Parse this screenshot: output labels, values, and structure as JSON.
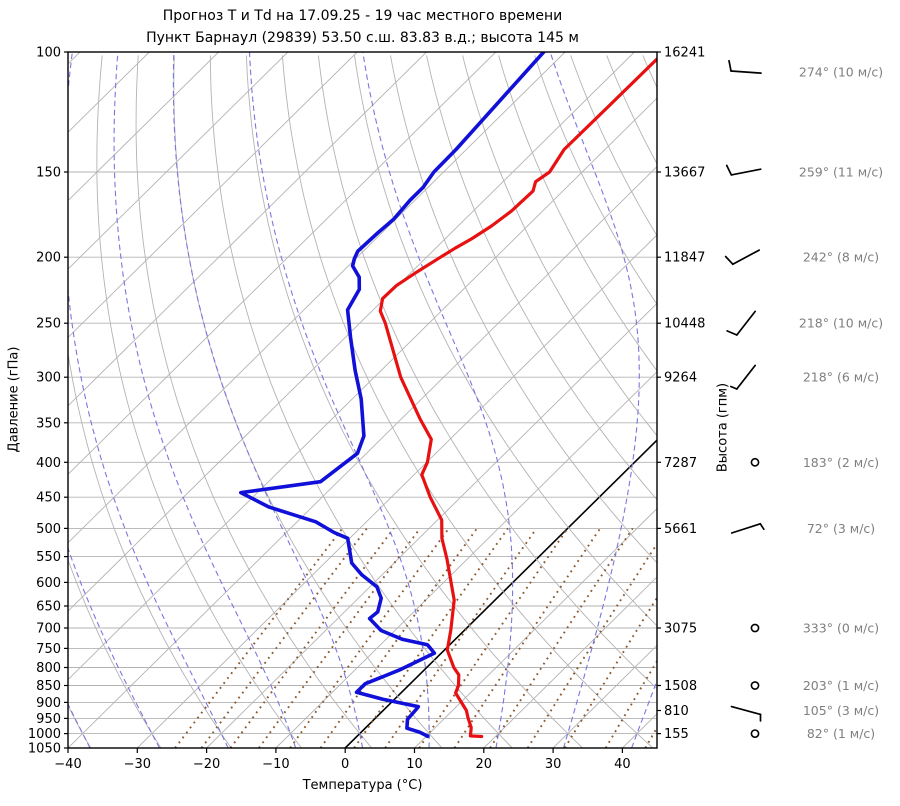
{
  "title": {
    "line1": "Прогноз Т и Td на 17.09.25 - 19 час местного времени",
    "line2": "Пункт Барнаул (29839) 53.50 с.ш. 83.83 в.д.; высота 145 м"
  },
  "axes": {
    "pressure_label": "Давление (гПа)",
    "temperature_label": "Температура (°C)",
    "height_label": "Высота (гпм)",
    "pressure_ticks": [
      100,
      150,
      200,
      250,
      300,
      350,
      400,
      450,
      500,
      550,
      600,
      650,
      700,
      750,
      800,
      850,
      900,
      950,
      1000,
      1050
    ],
    "temperature_ticks": [
      -40,
      -30,
      -20,
      -10,
      0,
      10,
      20,
      30,
      40
    ],
    "pressure_range_hpa": [
      100,
      1050
    ],
    "temperature_range_c": [
      -40,
      45
    ]
  },
  "height_axis": [
    {
      "p": 100,
      "label": "16241"
    },
    {
      "p": 150,
      "label": "13667"
    },
    {
      "p": 200,
      "label": "11847"
    },
    {
      "p": 250,
      "label": "10448"
    },
    {
      "p": 300,
      "label": "9264"
    },
    {
      "p": 400,
      "label": "7287"
    },
    {
      "p": 500,
      "label": "5661"
    },
    {
      "p": 700,
      "label": "3075"
    },
    {
      "p": 850,
      "label": "1508"
    },
    {
      "p": 925,
      "label": "810"
    },
    {
      "p": 1000,
      "label": "155"
    }
  ],
  "winds": [
    {
      "p": 107,
      "dir": 274,
      "speed": 10,
      "label": "274° (10 м/с)"
    },
    {
      "p": 150,
      "dir": 259,
      "speed": 11,
      "label": "259° (11 м/с)"
    },
    {
      "p": 200,
      "dir": 242,
      "speed": 8,
      "label": "242° (8 м/с)"
    },
    {
      "p": 250,
      "dir": 218,
      "speed": 10,
      "label": "218° (10 м/с)"
    },
    {
      "p": 300,
      "dir": 218,
      "speed": 6,
      "label": "218° (6 м/с)"
    },
    {
      "p": 400,
      "dir": 183,
      "speed": 2,
      "label": "183° (2 м/с)"
    },
    {
      "p": 500,
      "dir": 72,
      "speed": 3,
      "label": "72° (3 м/с)"
    },
    {
      "p": 700,
      "dir": 333,
      "speed": 0,
      "label": "333° (0 м/с)"
    },
    {
      "p": 850,
      "dir": 203,
      "speed": 1,
      "label": "203° (1 м/с)"
    },
    {
      "p": 925,
      "dir": 105,
      "speed": 3,
      "label": "105° (3 м/с)"
    },
    {
      "p": 1000,
      "dir": 82,
      "speed": 1,
      "label": "82° (1 м/с)"
    }
  ],
  "chart_data": {
    "type": "line",
    "diagram": "skew-t-log-p",
    "title": "Прогноз Т и Td на 17.09.25 - 19 час местного времени",
    "xlabel": "Температура (°C)",
    "ylabel": "Давление (гПа)",
    "y2label": "Высота (гпм)",
    "xlim": [
      -40,
      45
    ],
    "ylim": [
      1050,
      100
    ],
    "series": [
      {
        "name": "temperature_T",
        "color": "#e81111",
        "points_p_hpa_t_c": [
          [
            1010,
            18.0
          ],
          [
            1008,
            16.3
          ],
          [
            995,
            15.8
          ],
          [
            980,
            15.2
          ],
          [
            948,
            13.3
          ],
          [
            925,
            12.0
          ],
          [
            900,
            10.1
          ],
          [
            872,
            7.9
          ],
          [
            850,
            7.2
          ],
          [
            820,
            5.7
          ],
          [
            800,
            3.9
          ],
          [
            754,
            0.4
          ],
          [
            705,
            -2.0
          ],
          [
            637,
            -5.9
          ],
          [
            555,
            -12.9
          ],
          [
            517,
            -16.7
          ],
          [
            486,
            -19.4
          ],
          [
            450,
            -24.4
          ],
          [
            417,
            -28.9
          ],
          [
            400,
            -29.9
          ],
          [
            370,
            -32.7
          ],
          [
            346,
            -37.2
          ],
          [
            300,
            -46.2
          ],
          [
            250,
            -56.3
          ],
          [
            240,
            -58.8
          ],
          [
            230,
            -60.3
          ],
          [
            220,
            -60.2
          ],
          [
            210,
            -59.2
          ],
          [
            200,
            -58.0
          ],
          [
            194,
            -57.2
          ],
          [
            188,
            -56.2
          ],
          [
            180,
            -55.2
          ],
          [
            171,
            -54.5
          ],
          [
            160,
            -54.3
          ],
          [
            155,
            -55.3
          ],
          [
            150,
            -54.7
          ],
          [
            139,
            -55.9
          ],
          [
            120,
            -55.8
          ],
          [
            100,
            -55.7
          ]
        ]
      },
      {
        "name": "dewpoint_Td",
        "color": "#1010d8",
        "points_p_hpa_t_c": [
          [
            1009,
            10.2
          ],
          [
            995,
            8.4
          ],
          [
            982,
            6.0
          ],
          [
            953,
            4.8
          ],
          [
            922,
            4.6
          ],
          [
            913,
            4.5
          ],
          [
            890,
            -1.8
          ],
          [
            870,
            -6.5
          ],
          [
            845,
            -6.5
          ],
          [
            807,
            -3.6
          ],
          [
            762,
            -1.0
          ],
          [
            741,
            -3.2
          ],
          [
            727,
            -7.7
          ],
          [
            706,
            -12.0
          ],
          [
            678,
            -15.4
          ],
          [
            663,
            -15.2
          ],
          [
            633,
            -16.7
          ],
          [
            609,
            -19.0
          ],
          [
            585,
            -22.9
          ],
          [
            562,
            -26.1
          ],
          [
            517,
            -30.3
          ],
          [
            507,
            -33.1
          ],
          [
            489,
            -37.3
          ],
          [
            465,
            -46.3
          ],
          [
            443,
            -52.4
          ],
          [
            427,
            -42.5
          ],
          [
            388,
            -41.3
          ],
          [
            366,
            -42.9
          ],
          [
            323,
            -48.7
          ],
          [
            293,
            -53.8
          ],
          [
            262,
            -59.3
          ],
          [
            239,
            -63.7
          ],
          [
            223,
            -65.0
          ],
          [
            214,
            -66.8
          ],
          [
            206,
            -69.4
          ],
          [
            201,
            -70.2
          ],
          [
            196,
            -70.8
          ],
          [
            184,
            -70.6
          ],
          [
            176,
            -70.3
          ],
          [
            165,
            -70.7
          ],
          [
            158,
            -70.7
          ],
          [
            150,
            -71.4
          ],
          [
            139,
            -71.5
          ],
          [
            100,
            -73.1
          ]
        ]
      }
    ],
    "background": {
      "isobar_gridlines": {
        "step_hpa": 50,
        "color": "#b3b3b3"
      },
      "isotherms": {
        "min": -140,
        "max": 40,
        "step": 10,
        "color": "#b3b3b3",
        "highlight_value": 0,
        "highlight_color": "#000000"
      },
      "dry_adiabats": {
        "min": -40,
        "max": 240,
        "step": 10,
        "color": "#b3b3b3"
      },
      "moist_adiabats": {
        "min": -60,
        "max": 40,
        "step": 10,
        "color": "#7878e0",
        "style": "dashed"
      },
      "mixing_ratio_lines": {
        "values_g_kg": [
          0.5,
          0.7,
          1,
          1.4,
          2,
          2.8,
          4,
          5.5,
          7.7,
          10.8,
          15,
          21,
          29,
          41,
          57
        ],
        "p_bottom": 1050,
        "p_top": 500,
        "color": "#8a5a33",
        "style": "dotted"
      }
    },
    "wind_barbs_colors": {
      "barb": "#000000",
      "label": "#7f7f7f"
    }
  }
}
